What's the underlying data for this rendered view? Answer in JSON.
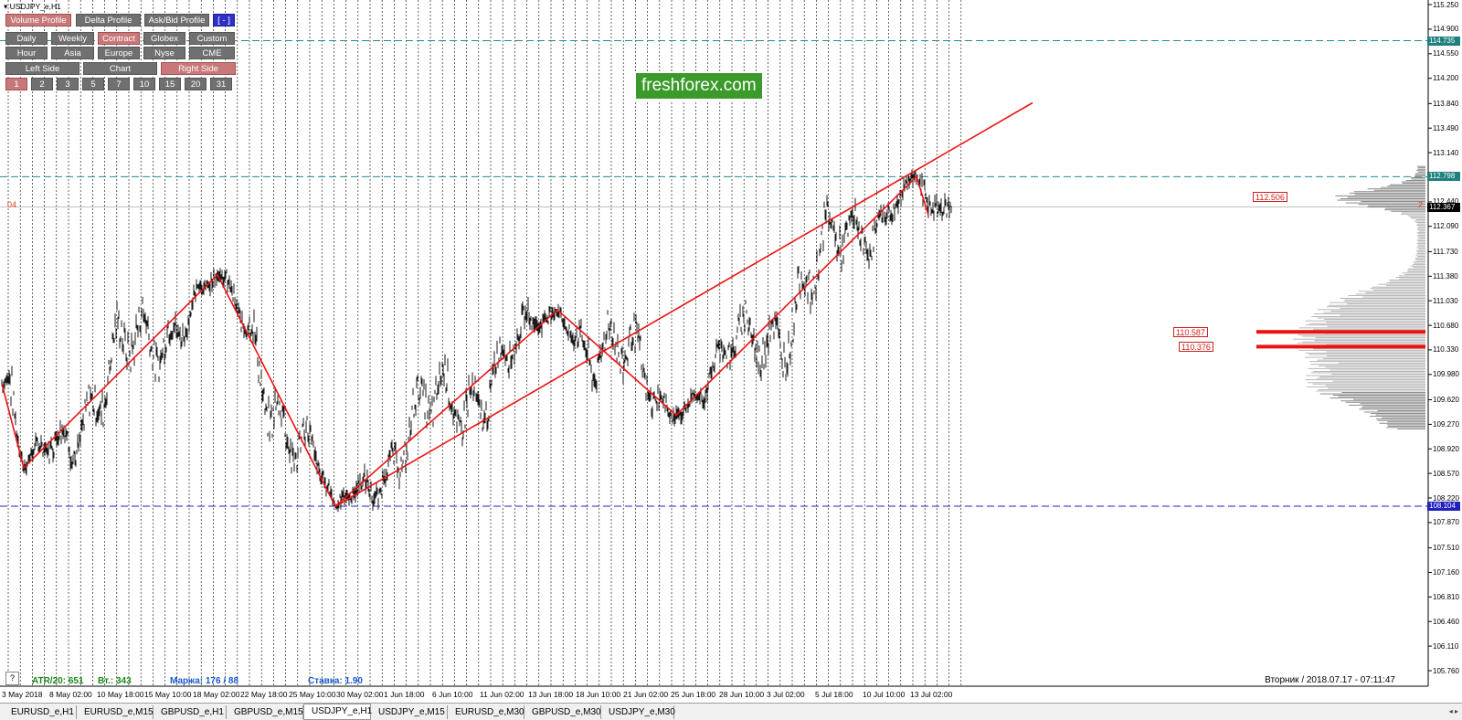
{
  "window": {
    "title": "USDJPY_e,H1"
  },
  "toolbar_rows": [
    [
      {
        "label": "Volume Profile",
        "active": true
      },
      {
        "label": "Delta Profile",
        "active": false
      },
      {
        "label": "Ask/Bid Profile",
        "active": false
      },
      {
        "label": "[ - ]",
        "active": false,
        "blue": true
      }
    ],
    [
      {
        "label": "Daily",
        "active": false
      },
      {
        "label": "Weekly",
        "active": false
      },
      {
        "label": "Contract",
        "active": true
      },
      {
        "label": "Globex",
        "active": false
      },
      {
        "label": "Custom",
        "active": false
      }
    ],
    [
      {
        "label": "Hour",
        "active": false
      },
      {
        "label": "Asia",
        "active": false
      },
      {
        "label": "Europe",
        "active": false
      },
      {
        "label": "Nyse",
        "active": false
      },
      {
        "label": "CME",
        "active": false
      }
    ],
    [
      {
        "label": "Left Side",
        "active": false
      },
      {
        "label": "Chart",
        "active": false
      },
      {
        "label": "Right Side",
        "active": true
      }
    ],
    [
      {
        "label": "1",
        "active": true
      },
      {
        "label": "2",
        "active": false
      },
      {
        "label": "3",
        "active": false
      },
      {
        "label": "5",
        "active": false
      },
      {
        "label": "7",
        "active": false
      },
      {
        "label": "10",
        "active": false
      },
      {
        "label": "15",
        "active": false
      },
      {
        "label": "20",
        "active": false
      },
      {
        "label": "31",
        "active": false
      }
    ]
  ],
  "logo": {
    "text": "freshforex.com"
  },
  "left_marker": "04",
  "profile_marker": "2",
  "status": {
    "atr": "ATR/20: 651",
    "volume": "Вт.: 343",
    "margin": "Маржа: 176 / 88",
    "rate": "Ставка: 1.90",
    "help": "?",
    "datetime": "Вторник  /  2018.07.17  -  07:11:47"
  },
  "price_axis": [
    "115.250",
    "114.900",
    "114.550",
    "114.200",
    "113.840",
    "113.490",
    "113.140",
    "112.790",
    "112.440",
    "112.090",
    "111.730",
    "111.380",
    "111.030",
    "110.680",
    "110.330",
    "109.980",
    "109.620",
    "109.270",
    "108.920",
    "108.570",
    "108.220",
    "107.870",
    "107.510",
    "107.160",
    "106.810",
    "106.460",
    "106.110",
    "105.760"
  ],
  "price_tags": [
    {
      "label": "114.735",
      "price": 114.735,
      "color": "#1f7f7f"
    },
    {
      "label": "112.798",
      "price": 112.798,
      "color": "#1f7f7f"
    },
    {
      "label": "112.367",
      "price": 112.367,
      "color": "#000000"
    },
    {
      "label": "108.104",
      "price": 108.104,
      "color": "#2020c0"
    }
  ],
  "volume_profile_labels": [
    {
      "label": "112.506",
      "price": 112.506
    },
    {
      "label": "110.587",
      "price": 110.587
    },
    {
      "label": "110.376",
      "price": 110.376
    }
  ],
  "time_axis": [
    "3 May 2018",
    "8 May 02:00",
    "10 May 18:00",
    "15 May 10:00",
    "18 May 02:00",
    "22 May 18:00",
    "25 May 10:00",
    "30 May 02:00",
    "1 Jun 18:00",
    "6 Jun 10:00",
    "11 Jun 02:00",
    "13 Jun 18:00",
    "18 Jun 10:00",
    "21 Jun 02:00",
    "25 Jun 18:00",
    "28 Jun 10:00",
    "3 Jul 02:00",
    "5 Jul 18:00",
    "10 Jul 10:00",
    "13 Jul 02:00"
  ],
  "zigzag_prices": [
    109.85,
    108.65,
    111.4,
    108.1,
    110.9,
    109.4,
    112.8,
    112.25
  ],
  "trend_line": {
    "from_price": 108.1,
    "to_price": 113.85
  },
  "tabs": [
    {
      "label": "EURUSD_e,H1",
      "active": false
    },
    {
      "label": "EURUSD_e,M15",
      "active": false
    },
    {
      "label": "GBPUSD_e,H1",
      "active": false
    },
    {
      "label": "GBPUSD_e,M15",
      "active": false
    },
    {
      "label": "USDJPY_e,H1",
      "active": true
    },
    {
      "label": "USDJPY_e,M15",
      "active": false
    },
    {
      "label": "EURUSD_e,M30",
      "active": false
    },
    {
      "label": "GBPUSD_e,M30",
      "active": false
    },
    {
      "label": "USDJPY_e,M30",
      "active": false
    }
  ],
  "colors": {
    "zigzag": "#ee1111",
    "price_line": "#000000",
    "teal_level": "#1f8f8f",
    "blue_level": "#2020d0",
    "profile": "#b0b0b0",
    "profile_dark": "#808080",
    "poc": "#ee1111"
  }
}
